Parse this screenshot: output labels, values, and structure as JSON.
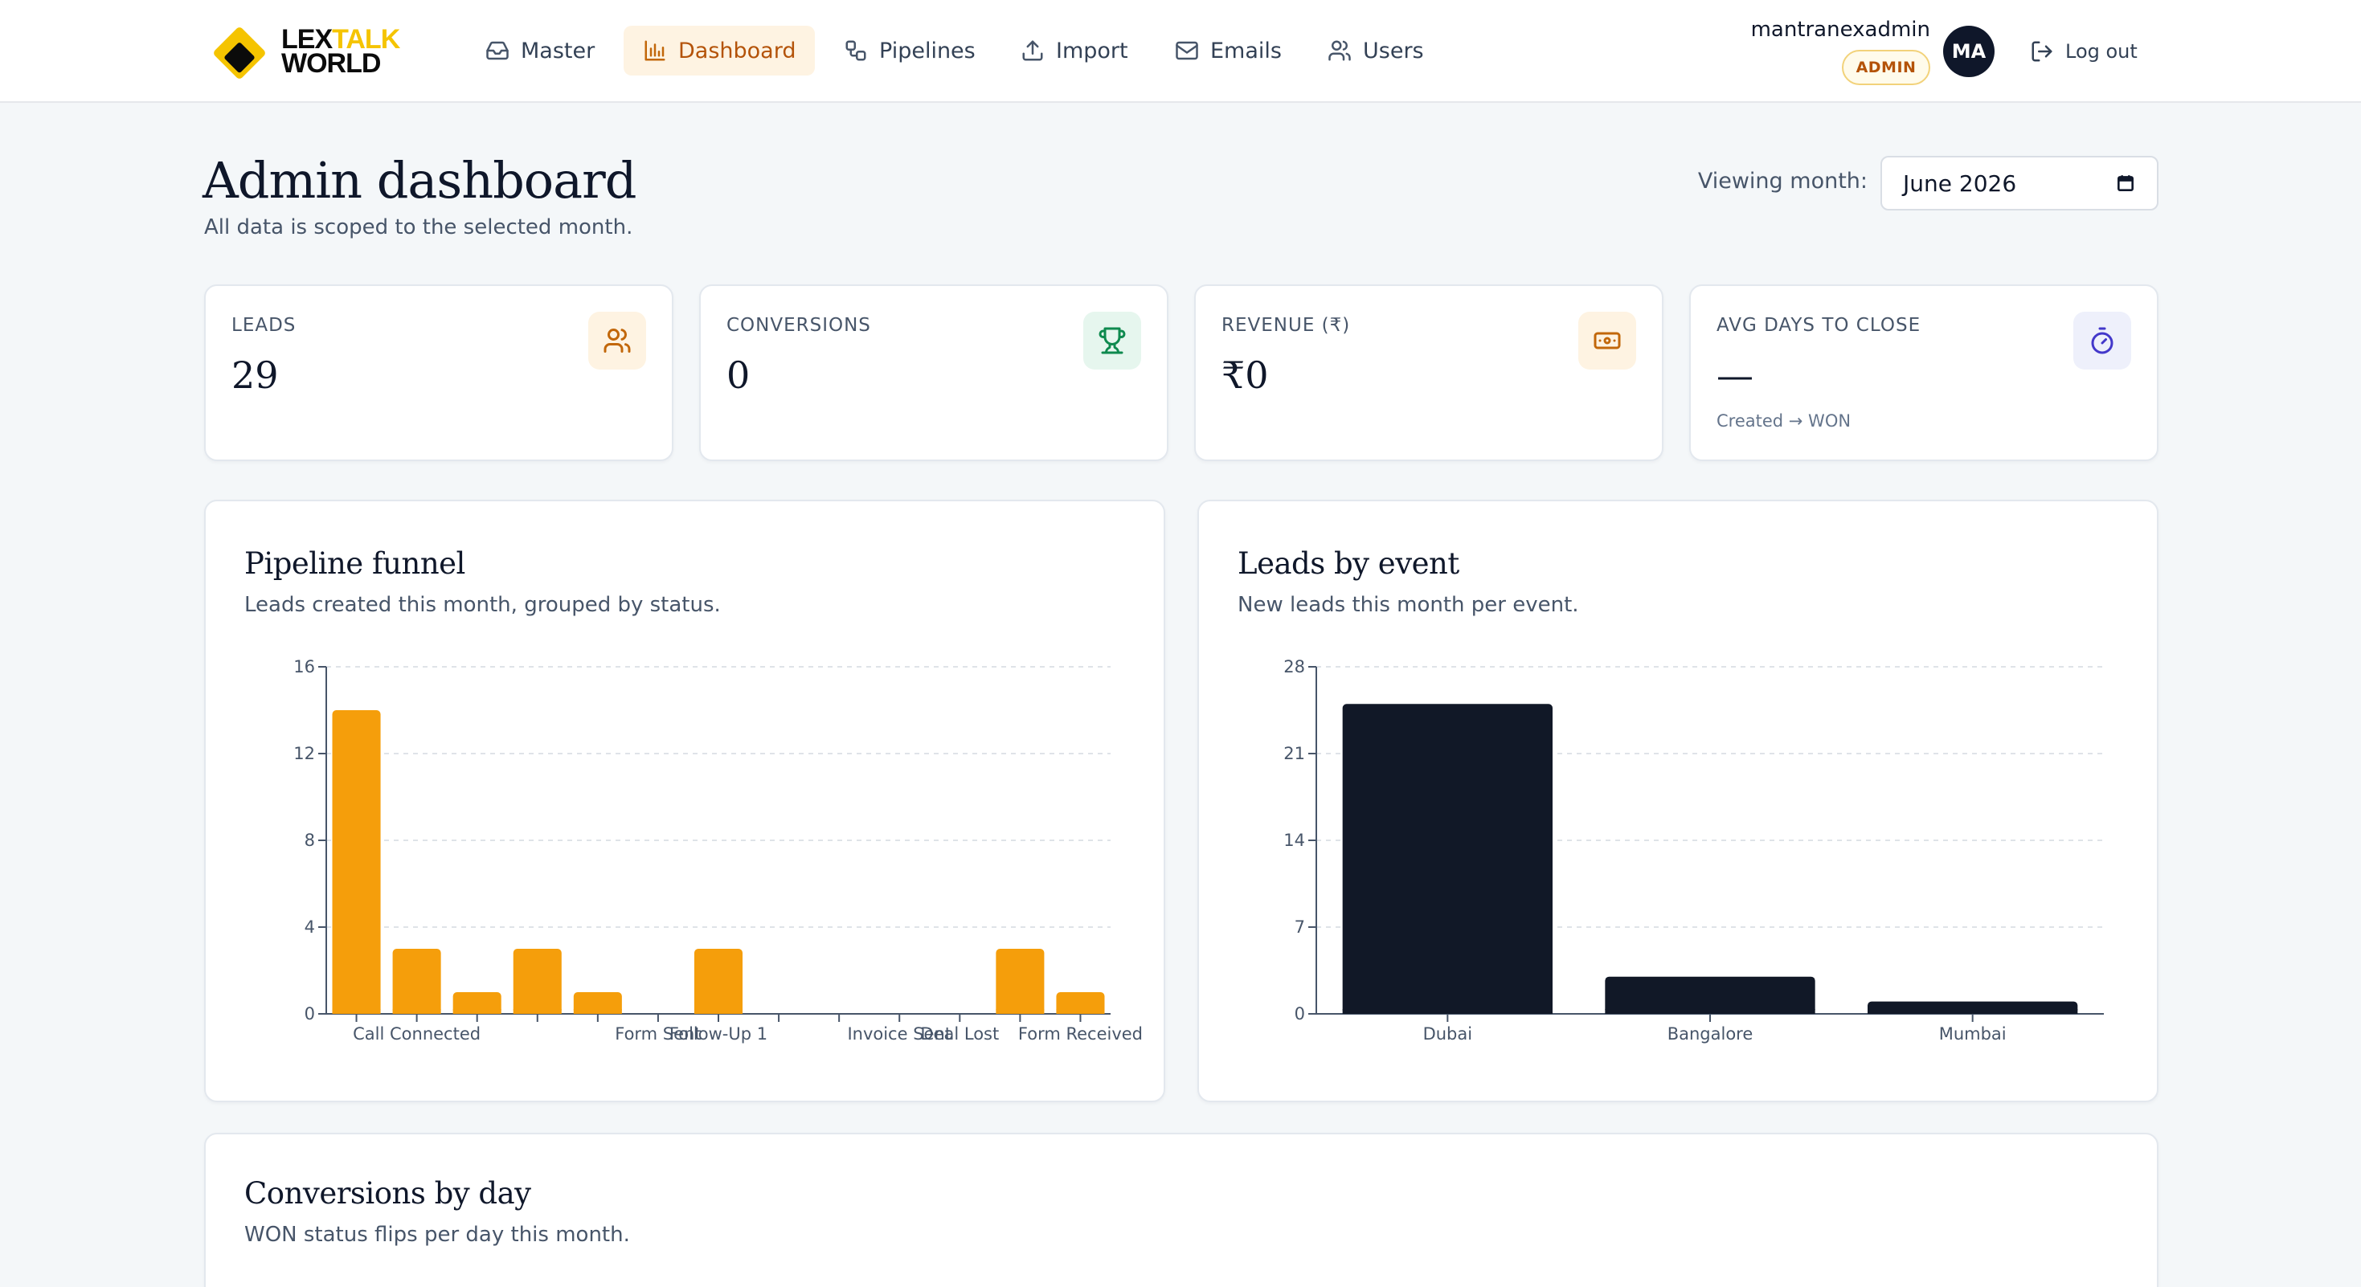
{
  "header": {
    "logo": {
      "word1a": "LEX",
      "word1b": "TALK",
      "word2": "WORLD"
    },
    "nav": [
      {
        "label": "Master",
        "icon": "inbox-icon"
      },
      {
        "label": "Dashboard",
        "icon": "bar-chart-icon",
        "active": true
      },
      {
        "label": "Pipelines",
        "icon": "workflow-icon"
      },
      {
        "label": "Import",
        "icon": "upload-icon"
      },
      {
        "label": "Emails",
        "icon": "mail-icon"
      },
      {
        "label": "Users",
        "icon": "users-icon"
      }
    ],
    "user": {
      "name": "mantranexadmin",
      "role": "ADMIN",
      "initials": "MA"
    },
    "logout_label": "Log out"
  },
  "page": {
    "title": "Admin dashboard",
    "subtitle": "All data is scoped to the selected month.",
    "month_label": "Viewing month:",
    "month_value": "June 2026"
  },
  "kpis": [
    {
      "label": "LEADS",
      "value": "29",
      "note": "",
      "icon": "users-icon",
      "icon_bg": "#fef3e2",
      "icon_color": "#c2670a"
    },
    {
      "label": "CONVERSIONS",
      "value": "0",
      "note": "",
      "icon": "trophy-icon",
      "icon_bg": "#e6f6ee",
      "icon_color": "#0f8a4f"
    },
    {
      "label": "REVENUE (₹)",
      "value": "₹0",
      "note": "",
      "icon": "banknote-icon",
      "icon_bg": "#fef3e2",
      "icon_color": "#c2670a"
    },
    {
      "label": "AVG DAYS TO CLOSE",
      "value": "—",
      "note": "Created → WON",
      "icon": "stopwatch-icon",
      "icon_bg": "#eef0fb",
      "icon_color": "#4338ca"
    }
  ],
  "funnel": {
    "title": "Pipeline funnel",
    "subtitle": "Leads created this month, grouped by status."
  },
  "events": {
    "title": "Leads by event",
    "subtitle": "New leads this month per event."
  },
  "conversions": {
    "title": "Conversions by day",
    "subtitle": "WON status flips per day this month."
  },
  "chart_data": [
    {
      "type": "bar",
      "title": "Pipeline funnel",
      "categories": [
        "",
        "Call Connected",
        "",
        "",
        "",
        "Form Sent",
        "Follow-Up 1",
        "",
        "",
        "Invoice Sent",
        "Deal Lost",
        "",
        "Form Received"
      ],
      "values": [
        14,
        3,
        1,
        3,
        1,
        0,
        3,
        0,
        0,
        0,
        0,
        3,
        1
      ],
      "ylim": [
        0,
        16
      ],
      "yticks": [
        0,
        4,
        8,
        12,
        16
      ],
      "grid": true,
      "color": "#f59e0b"
    },
    {
      "type": "bar",
      "title": "Leads by event",
      "categories": [
        "Dubai",
        "Bangalore",
        "Mumbai"
      ],
      "values": [
        25,
        3,
        1
      ],
      "ylim": [
        0,
        28
      ],
      "yticks": [
        0,
        7,
        14,
        21,
        28
      ],
      "grid": true,
      "color": "#111827"
    }
  ]
}
